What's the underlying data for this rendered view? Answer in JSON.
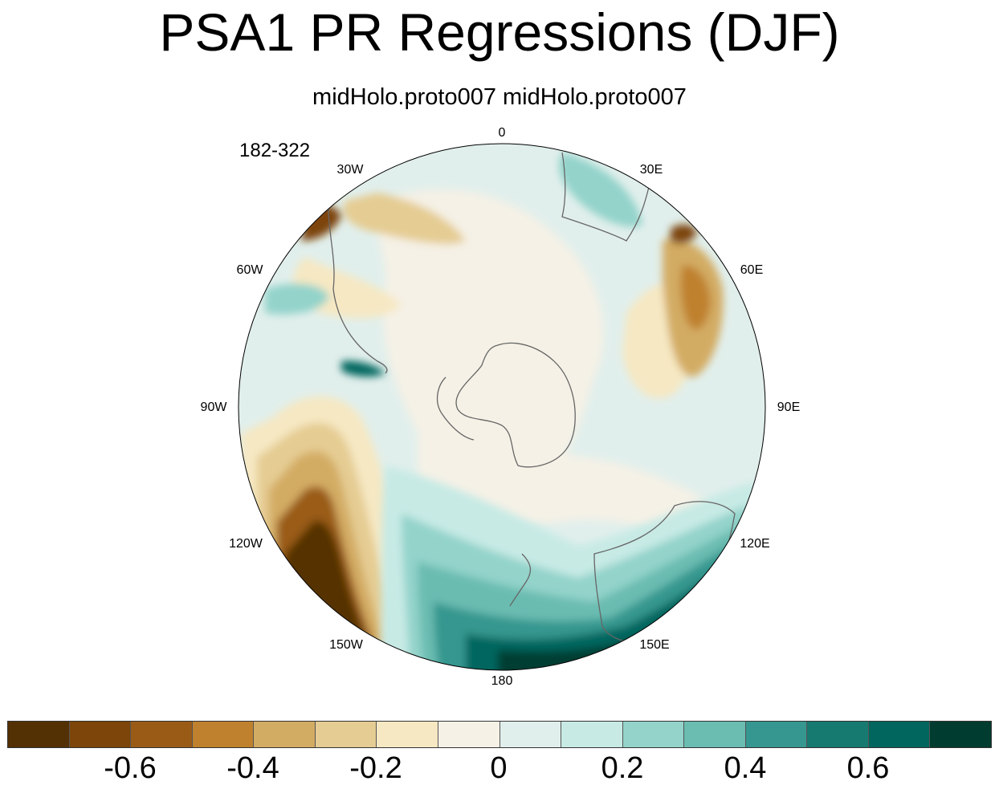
{
  "title": "PSA1 PR Regressions (DJF)",
  "subtitle": "midHolo.proto007  midHolo.proto007",
  "run_years": "182-322",
  "longitude_labels": {
    "lon0": "0",
    "lon30e": "30E",
    "lon60e": "60E",
    "lon90e": "90E",
    "lon120e": "120E",
    "lon150e": "150E",
    "lon180": "180",
    "lon150w": "150W",
    "lon120w": "120W",
    "lon90w": "90W",
    "lon60w": "60W",
    "lon30w": "30W"
  },
  "colorbar": {
    "colors": [
      "#543005",
      "#7d4509",
      "#9a5b17",
      "#bf812d",
      "#d3ac64",
      "#e5cc93",
      "#f6e8c3",
      "#f5f1e6",
      "#e1efec",
      "#c7eae5",
      "#93d3ca",
      "#6bbcb1",
      "#35978f",
      "#177a71",
      "#01665e",
      "#003c30"
    ],
    "ticks": {
      "t1": "-0.6",
      "t2": "-0.4",
      "t3": "-0.2",
      "t4": "0",
      "t5": "0.2",
      "t6": "0.4",
      "t7": "0.6"
    }
  }
}
